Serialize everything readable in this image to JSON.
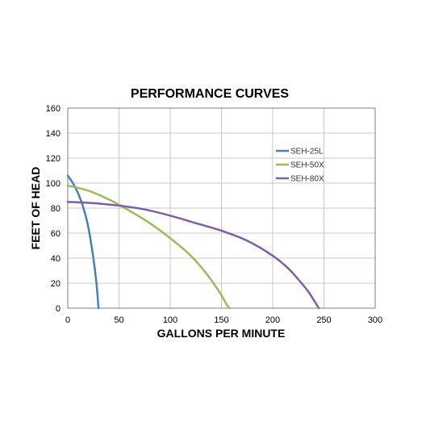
{
  "chart_data": {
    "type": "line",
    "title": "PERFORMANCE CURVES",
    "xlabel": "GALLONS PER MINUTE",
    "ylabel": "FEET OF HEAD",
    "xlim": [
      0,
      300
    ],
    "ylim": [
      0,
      160
    ],
    "xticks": [
      0,
      50,
      100,
      150,
      200,
      250,
      300
    ],
    "yticks": [
      0,
      20,
      40,
      60,
      80,
      100,
      120,
      140,
      160
    ],
    "grid": true,
    "legend_position": "top-right",
    "series": [
      {
        "name": "SEH-25L",
        "color": "#4a7ebb",
        "points": [
          [
            0,
            106
          ],
          [
            5,
            100
          ],
          [
            10,
            92
          ],
          [
            15,
            81
          ],
          [
            20,
            65
          ],
          [
            25,
            40
          ],
          [
            28,
            20
          ],
          [
            30,
            0
          ]
        ]
      },
      {
        "name": "SEH-50X",
        "color": "#9bbb59",
        "points": [
          [
            0,
            98
          ],
          [
            20,
            94
          ],
          [
            40,
            87
          ],
          [
            60,
            78
          ],
          [
            80,
            68
          ],
          [
            100,
            56
          ],
          [
            120,
            42
          ],
          [
            135,
            28
          ],
          [
            148,
            13
          ],
          [
            155,
            3
          ],
          [
            158,
            0
          ]
        ]
      },
      {
        "name": "SEH-80X",
        "color": "#7f5fa8",
        "points": [
          [
            0,
            85
          ],
          [
            25,
            84
          ],
          [
            50,
            82
          ],
          [
            75,
            79
          ],
          [
            100,
            74
          ],
          [
            125,
            68
          ],
          [
            150,
            62
          ],
          [
            175,
            54
          ],
          [
            200,
            42
          ],
          [
            215,
            32
          ],
          [
            225,
            23
          ],
          [
            235,
            13
          ],
          [
            242,
            4
          ],
          [
            245,
            0
          ]
        ]
      }
    ]
  }
}
